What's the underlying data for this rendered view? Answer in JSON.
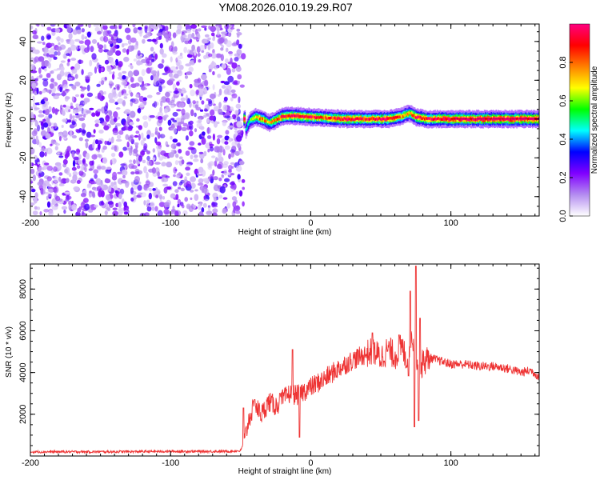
{
  "title": "YM08.2026.010.19.29.R07",
  "chart_data": [
    {
      "type": "heatmap",
      "xlabel": "Height of straight line (km)",
      "ylabel": "Frequency (Hz)",
      "xlim": [
        -200,
        163
      ],
      "ylim": [
        -50,
        49
      ],
      "x_ticks": [
        -200,
        -100,
        0,
        100
      ],
      "y_ticks": [
        -40,
        -20,
        0,
        20,
        40
      ],
      "colorbar": {
        "label": "Normalized spectral amplitude",
        "range": [
          0,
          1
        ],
        "ticks": [
          0.0,
          0.2,
          0.4,
          0.6,
          0.8
        ],
        "tick_labels": [
          "0.0",
          "0.2",
          "0.4",
          "0.6",
          "0.8"
        ],
        "colormap": [
          "#ffffff",
          "#b48cf0",
          "#8000ff",
          "#0000ff",
          "#00ffff",
          "#00ff00",
          "#ffff00",
          "#ff8000",
          "#ff0000",
          "#ff0080"
        ]
      },
      "noise_region_x": [
        -200,
        -48
      ],
      "band_region_x": [
        -48,
        163
      ],
      "band_center_hz": 0.5,
      "band_trace": [
        {
          "x": -47,
          "y": -6,
          "amp": 0.3
        },
        {
          "x": -44,
          "y": -1,
          "amp": 0.45
        },
        {
          "x": -40,
          "y": 1,
          "amp": 0.65
        },
        {
          "x": -35,
          "y": 0,
          "amp": 0.7
        },
        {
          "x": -30,
          "y": -2,
          "amp": 0.6
        },
        {
          "x": -24,
          "y": 0,
          "amp": 0.75
        },
        {
          "x": -20,
          "y": 1.5,
          "amp": 0.8
        },
        {
          "x": -10,
          "y": 1.5,
          "amp": 0.85
        },
        {
          "x": 0,
          "y": 1,
          "amp": 0.8
        },
        {
          "x": 10,
          "y": 0.5,
          "amp": 0.75
        },
        {
          "x": 25,
          "y": 0,
          "amp": 0.85
        },
        {
          "x": 40,
          "y": 0,
          "amp": 0.8
        },
        {
          "x": 55,
          "y": 0,
          "amp": 0.85
        },
        {
          "x": 65,
          "y": 1.5,
          "amp": 0.7
        },
        {
          "x": 70,
          "y": 3,
          "amp": 0.65
        },
        {
          "x": 75,
          "y": 1,
          "amp": 0.85
        },
        {
          "x": 82,
          "y": 0,
          "amp": 0.8
        },
        {
          "x": 100,
          "y": 0,
          "amp": 0.9
        },
        {
          "x": 130,
          "y": 0,
          "amp": 0.92
        },
        {
          "x": 163,
          "y": 0,
          "amp": 0.92
        }
      ]
    },
    {
      "type": "line",
      "xlabel": "Height of straight line (km)",
      "ylabel": "SNR (10 * v/v)",
      "xlim": [
        -200,
        163
      ],
      "ylim": [
        0,
        9200
      ],
      "x_ticks": [
        -200,
        -100,
        0,
        100
      ],
      "y_ticks": [
        2000,
        4000,
        6000,
        8000
      ],
      "series": [
        {
          "color": "#ee3333",
          "x": [
            -200,
            -150,
            -100,
            -60,
            -50,
            -47,
            -44,
            -40,
            -35,
            -30,
            -25,
            -20,
            -15,
            -10,
            -5,
            0,
            10,
            20,
            30,
            40,
            45,
            50,
            55,
            60,
            65,
            70,
            72,
            75,
            78,
            80,
            85,
            90,
            100,
            110,
            120,
            130,
            140,
            150,
            157,
            163
          ],
          "y": [
            200,
            200,
            220,
            220,
            250,
            800,
            1800,
            2400,
            2000,
            2600,
            2400,
            2700,
            3000,
            2900,
            3100,
            3300,
            3700,
            4200,
            4600,
            4900,
            5000,
            4700,
            5100,
            4800,
            5200,
            4400,
            6000,
            4800,
            4000,
            4500,
            4700,
            4600,
            4400,
            4400,
            4300,
            4300,
            4200,
            4000,
            4100,
            3800
          ]
        }
      ],
      "spikes": [
        {
          "x": -48,
          "y": 2300
        },
        {
          "x": -40,
          "y": 2700
        },
        {
          "x": -22,
          "y": 3000
        },
        {
          "x": -13,
          "y": 5100
        },
        {
          "x": -8,
          "y": 900
        },
        {
          "x": 44,
          "y": 5900
        },
        {
          "x": 63,
          "y": 5800
        },
        {
          "x": 71,
          "y": 7900
        },
        {
          "x": 74,
          "y": 1400
        },
        {
          "x": 75,
          "y": 9100
        },
        {
          "x": 77,
          "y": 1700
        },
        {
          "x": 78,
          "y": 6600
        }
      ]
    }
  ]
}
